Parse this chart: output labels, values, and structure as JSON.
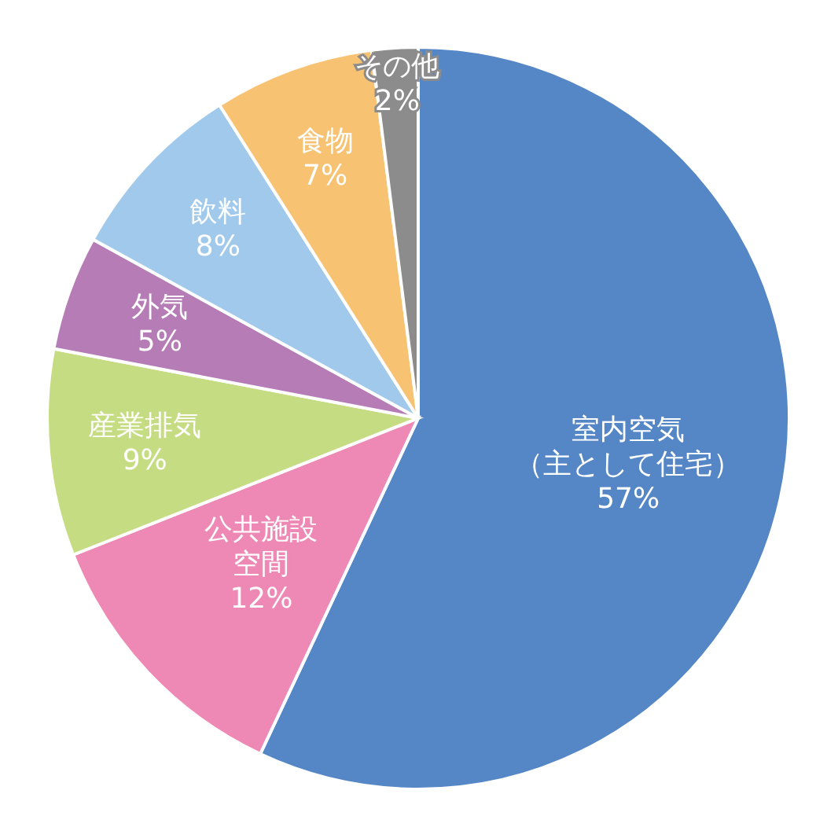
{
  "chart_data": {
    "type": "pie",
    "categories": [
      "室内空気（主として住宅）",
      "公共施設空間",
      "産業排気",
      "外気",
      "飲料",
      "食物",
      "その他"
    ],
    "values": [
      57,
      12,
      9,
      5,
      8,
      7,
      2
    ],
    "value_labels": [
      "57%",
      "12%",
      "9%",
      "5%",
      "8%",
      "7%",
      "2%"
    ],
    "colors": [
      "#5586c6",
      "#ee88b4",
      "#c6dc82",
      "#b57cb6",
      "#a0c9eb",
      "#f8c273",
      "#8c8c8c"
    ]
  }
}
